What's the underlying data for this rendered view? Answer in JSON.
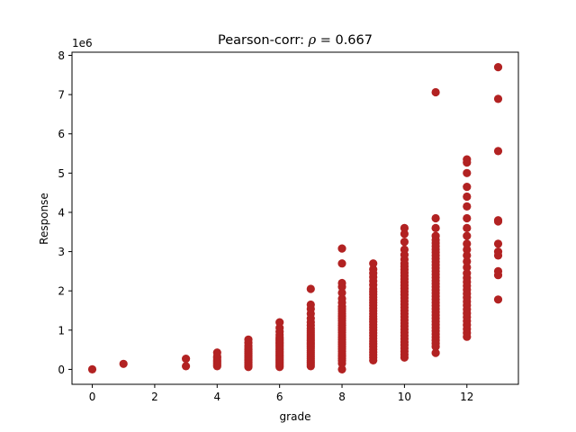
{
  "chart_data": {
    "type": "scatter",
    "title_prefix": "Pearson-corr: ",
    "title_rho": "ρ",
    "title_suffix": " = 0.667",
    "xlabel": "grade",
    "ylabel": "Response",
    "y_offset_label": "1e6",
    "xlim": [
      -0.65,
      13.65
    ],
    "ylim": [
      -380000,
      8080000
    ],
    "x_ticks": [
      0,
      2,
      4,
      6,
      8,
      10,
      12
    ],
    "y_ticks": [
      0,
      1000000,
      2000000,
      3000000,
      4000000,
      5000000,
      6000000,
      7000000,
      8000000
    ],
    "y_tick_labels": [
      "0",
      "1",
      "2",
      "3",
      "4",
      "5",
      "6",
      "7",
      "8"
    ],
    "grid": false,
    "marker_color": "#b22222",
    "points": [
      {
        "x": 0,
        "y": 0
      },
      {
        "x": 1,
        "y": 140000
      },
      {
        "x": 3,
        "y": 80000
      },
      {
        "x": 3,
        "y": 270000
      },
      {
        "x": 4,
        "y": 80000
      },
      {
        "x": 4,
        "y": 120000
      },
      {
        "x": 4,
        "y": 160000
      },
      {
        "x": 4,
        "y": 200000
      },
      {
        "x": 4,
        "y": 240000
      },
      {
        "x": 4,
        "y": 290000
      },
      {
        "x": 4,
        "y": 330000
      },
      {
        "x": 4,
        "y": 430000
      },
      {
        "x": 5,
        "y": 60000
      },
      {
        "x": 5,
        "y": 100000
      },
      {
        "x": 5,
        "y": 140000
      },
      {
        "x": 5,
        "y": 180000
      },
      {
        "x": 5,
        "y": 220000
      },
      {
        "x": 5,
        "y": 260000
      },
      {
        "x": 5,
        "y": 300000
      },
      {
        "x": 5,
        "y": 340000
      },
      {
        "x": 5,
        "y": 380000
      },
      {
        "x": 5,
        "y": 420000
      },
      {
        "x": 5,
        "y": 460000
      },
      {
        "x": 5,
        "y": 500000
      },
      {
        "x": 5,
        "y": 540000
      },
      {
        "x": 5,
        "y": 600000
      },
      {
        "x": 5,
        "y": 680000
      },
      {
        "x": 5,
        "y": 760000
      },
      {
        "x": 6,
        "y": 60000
      },
      {
        "x": 6,
        "y": 100000
      },
      {
        "x": 6,
        "y": 140000
      },
      {
        "x": 6,
        "y": 180000
      },
      {
        "x": 6,
        "y": 220000
      },
      {
        "x": 6,
        "y": 260000
      },
      {
        "x": 6,
        "y": 300000
      },
      {
        "x": 6,
        "y": 340000
      },
      {
        "x": 6,
        "y": 380000
      },
      {
        "x": 6,
        "y": 420000
      },
      {
        "x": 6,
        "y": 460000
      },
      {
        "x": 6,
        "y": 500000
      },
      {
        "x": 6,
        "y": 540000
      },
      {
        "x": 6,
        "y": 580000
      },
      {
        "x": 6,
        "y": 620000
      },
      {
        "x": 6,
        "y": 660000
      },
      {
        "x": 6,
        "y": 700000
      },
      {
        "x": 6,
        "y": 740000
      },
      {
        "x": 6,
        "y": 780000
      },
      {
        "x": 6,
        "y": 820000
      },
      {
        "x": 6,
        "y": 880000
      },
      {
        "x": 6,
        "y": 960000
      },
      {
        "x": 6,
        "y": 1060000
      },
      {
        "x": 6,
        "y": 1200000
      },
      {
        "x": 7,
        "y": 80000
      },
      {
        "x": 7,
        "y": 130000
      },
      {
        "x": 7,
        "y": 180000
      },
      {
        "x": 7,
        "y": 230000
      },
      {
        "x": 7,
        "y": 280000
      },
      {
        "x": 7,
        "y": 330000
      },
      {
        "x": 7,
        "y": 380000
      },
      {
        "x": 7,
        "y": 430000
      },
      {
        "x": 7,
        "y": 480000
      },
      {
        "x": 7,
        "y": 530000
      },
      {
        "x": 7,
        "y": 580000
      },
      {
        "x": 7,
        "y": 630000
      },
      {
        "x": 7,
        "y": 680000
      },
      {
        "x": 7,
        "y": 730000
      },
      {
        "x": 7,
        "y": 780000
      },
      {
        "x": 7,
        "y": 830000
      },
      {
        "x": 7,
        "y": 880000
      },
      {
        "x": 7,
        "y": 930000
      },
      {
        "x": 7,
        "y": 980000
      },
      {
        "x": 7,
        "y": 1040000
      },
      {
        "x": 7,
        "y": 1120000
      },
      {
        "x": 7,
        "y": 1200000
      },
      {
        "x": 7,
        "y": 1300000
      },
      {
        "x": 7,
        "y": 1420000
      },
      {
        "x": 7,
        "y": 1540000
      },
      {
        "x": 7,
        "y": 1650000
      },
      {
        "x": 7,
        "y": 2050000
      },
      {
        "x": 8,
        "y": 0
      },
      {
        "x": 8,
        "y": 150000
      },
      {
        "x": 8,
        "y": 220000
      },
      {
        "x": 8,
        "y": 280000
      },
      {
        "x": 8,
        "y": 340000
      },
      {
        "x": 8,
        "y": 400000
      },
      {
        "x": 8,
        "y": 460000
      },
      {
        "x": 8,
        "y": 520000
      },
      {
        "x": 8,
        "y": 580000
      },
      {
        "x": 8,
        "y": 640000
      },
      {
        "x": 8,
        "y": 700000
      },
      {
        "x": 8,
        "y": 760000
      },
      {
        "x": 8,
        "y": 820000
      },
      {
        "x": 8,
        "y": 880000
      },
      {
        "x": 8,
        "y": 940000
      },
      {
        "x": 8,
        "y": 1000000
      },
      {
        "x": 8,
        "y": 1060000
      },
      {
        "x": 8,
        "y": 1120000
      },
      {
        "x": 8,
        "y": 1180000
      },
      {
        "x": 8,
        "y": 1240000
      },
      {
        "x": 8,
        "y": 1300000
      },
      {
        "x": 8,
        "y": 1360000
      },
      {
        "x": 8,
        "y": 1420000
      },
      {
        "x": 8,
        "y": 1480000
      },
      {
        "x": 8,
        "y": 1540000
      },
      {
        "x": 8,
        "y": 1600000
      },
      {
        "x": 8,
        "y": 1700000
      },
      {
        "x": 8,
        "y": 1800000
      },
      {
        "x": 8,
        "y": 1950000
      },
      {
        "x": 8,
        "y": 2100000
      },
      {
        "x": 8,
        "y": 2200000
      },
      {
        "x": 8,
        "y": 2700000
      },
      {
        "x": 8,
        "y": 3080000
      },
      {
        "x": 9,
        "y": 230000
      },
      {
        "x": 9,
        "y": 300000
      },
      {
        "x": 9,
        "y": 370000
      },
      {
        "x": 9,
        "y": 440000
      },
      {
        "x": 9,
        "y": 510000
      },
      {
        "x": 9,
        "y": 580000
      },
      {
        "x": 9,
        "y": 650000
      },
      {
        "x": 9,
        "y": 720000
      },
      {
        "x": 9,
        "y": 790000
      },
      {
        "x": 9,
        "y": 860000
      },
      {
        "x": 9,
        "y": 930000
      },
      {
        "x": 9,
        "y": 1000000
      },
      {
        "x": 9,
        "y": 1070000
      },
      {
        "x": 9,
        "y": 1140000
      },
      {
        "x": 9,
        "y": 1210000
      },
      {
        "x": 9,
        "y": 1280000
      },
      {
        "x": 9,
        "y": 1350000
      },
      {
        "x": 9,
        "y": 1420000
      },
      {
        "x": 9,
        "y": 1490000
      },
      {
        "x": 9,
        "y": 1560000
      },
      {
        "x": 9,
        "y": 1630000
      },
      {
        "x": 9,
        "y": 1700000
      },
      {
        "x": 9,
        "y": 1770000
      },
      {
        "x": 9,
        "y": 1840000
      },
      {
        "x": 9,
        "y": 1910000
      },
      {
        "x": 9,
        "y": 1980000
      },
      {
        "x": 9,
        "y": 2050000
      },
      {
        "x": 9,
        "y": 2150000
      },
      {
        "x": 9,
        "y": 2250000
      },
      {
        "x": 9,
        "y": 2350000
      },
      {
        "x": 9,
        "y": 2450000
      },
      {
        "x": 9,
        "y": 2550000
      },
      {
        "x": 9,
        "y": 2700000
      },
      {
        "x": 10,
        "y": 300000
      },
      {
        "x": 10,
        "y": 380000
      },
      {
        "x": 10,
        "y": 460000
      },
      {
        "x": 10,
        "y": 540000
      },
      {
        "x": 10,
        "y": 620000
      },
      {
        "x": 10,
        "y": 700000
      },
      {
        "x": 10,
        "y": 780000
      },
      {
        "x": 10,
        "y": 860000
      },
      {
        "x": 10,
        "y": 940000
      },
      {
        "x": 10,
        "y": 1020000
      },
      {
        "x": 10,
        "y": 1100000
      },
      {
        "x": 10,
        "y": 1180000
      },
      {
        "x": 10,
        "y": 1260000
      },
      {
        "x": 10,
        "y": 1340000
      },
      {
        "x": 10,
        "y": 1420000
      },
      {
        "x": 10,
        "y": 1500000
      },
      {
        "x": 10,
        "y": 1580000
      },
      {
        "x": 10,
        "y": 1660000
      },
      {
        "x": 10,
        "y": 1740000
      },
      {
        "x": 10,
        "y": 1820000
      },
      {
        "x": 10,
        "y": 1900000
      },
      {
        "x": 10,
        "y": 1980000
      },
      {
        "x": 10,
        "y": 2060000
      },
      {
        "x": 10,
        "y": 2140000
      },
      {
        "x": 10,
        "y": 2220000
      },
      {
        "x": 10,
        "y": 2300000
      },
      {
        "x": 10,
        "y": 2380000
      },
      {
        "x": 10,
        "y": 2460000
      },
      {
        "x": 10,
        "y": 2540000
      },
      {
        "x": 10,
        "y": 2620000
      },
      {
        "x": 10,
        "y": 2700000
      },
      {
        "x": 10,
        "y": 2800000
      },
      {
        "x": 10,
        "y": 2920000
      },
      {
        "x": 10,
        "y": 3050000
      },
      {
        "x": 10,
        "y": 3250000
      },
      {
        "x": 10,
        "y": 3450000
      },
      {
        "x": 10,
        "y": 3600000
      },
      {
        "x": 11,
        "y": 420000
      },
      {
        "x": 11,
        "y": 580000
      },
      {
        "x": 11,
        "y": 660000
      },
      {
        "x": 11,
        "y": 740000
      },
      {
        "x": 11,
        "y": 820000
      },
      {
        "x": 11,
        "y": 900000
      },
      {
        "x": 11,
        "y": 980000
      },
      {
        "x": 11,
        "y": 1060000
      },
      {
        "x": 11,
        "y": 1140000
      },
      {
        "x": 11,
        "y": 1220000
      },
      {
        "x": 11,
        "y": 1300000
      },
      {
        "x": 11,
        "y": 1380000
      },
      {
        "x": 11,
        "y": 1460000
      },
      {
        "x": 11,
        "y": 1540000
      },
      {
        "x": 11,
        "y": 1620000
      },
      {
        "x": 11,
        "y": 1700000
      },
      {
        "x": 11,
        "y": 1780000
      },
      {
        "x": 11,
        "y": 1860000
      },
      {
        "x": 11,
        "y": 1940000
      },
      {
        "x": 11,
        "y": 2020000
      },
      {
        "x": 11,
        "y": 2100000
      },
      {
        "x": 11,
        "y": 2180000
      },
      {
        "x": 11,
        "y": 2260000
      },
      {
        "x": 11,
        "y": 2340000
      },
      {
        "x": 11,
        "y": 2420000
      },
      {
        "x": 11,
        "y": 2500000
      },
      {
        "x": 11,
        "y": 2580000
      },
      {
        "x": 11,
        "y": 2660000
      },
      {
        "x": 11,
        "y": 2740000
      },
      {
        "x": 11,
        "y": 2820000
      },
      {
        "x": 11,
        "y": 2900000
      },
      {
        "x": 11,
        "y": 2980000
      },
      {
        "x": 11,
        "y": 3060000
      },
      {
        "x": 11,
        "y": 3140000
      },
      {
        "x": 11,
        "y": 3220000
      },
      {
        "x": 11,
        "y": 3300000
      },
      {
        "x": 11,
        "y": 3400000
      },
      {
        "x": 11,
        "y": 3600000
      },
      {
        "x": 11,
        "y": 3850000
      },
      {
        "x": 11,
        "y": 7060000
      },
      {
        "x": 12,
        "y": 830000
      },
      {
        "x": 12,
        "y": 930000
      },
      {
        "x": 12,
        "y": 1030000
      },
      {
        "x": 12,
        "y": 1130000
      },
      {
        "x": 12,
        "y": 1230000
      },
      {
        "x": 12,
        "y": 1330000
      },
      {
        "x": 12,
        "y": 1430000
      },
      {
        "x": 12,
        "y": 1530000
      },
      {
        "x": 12,
        "y": 1630000
      },
      {
        "x": 12,
        "y": 1730000
      },
      {
        "x": 12,
        "y": 1830000
      },
      {
        "x": 12,
        "y": 1930000
      },
      {
        "x": 12,
        "y": 2030000
      },
      {
        "x": 12,
        "y": 2130000
      },
      {
        "x": 12,
        "y": 2230000
      },
      {
        "x": 12,
        "y": 2330000
      },
      {
        "x": 12,
        "y": 2450000
      },
      {
        "x": 12,
        "y": 2600000
      },
      {
        "x": 12,
        "y": 2750000
      },
      {
        "x": 12,
        "y": 2900000
      },
      {
        "x": 12,
        "y": 3050000
      },
      {
        "x": 12,
        "y": 3200000
      },
      {
        "x": 12,
        "y": 3400000
      },
      {
        "x": 12,
        "y": 3600000
      },
      {
        "x": 12,
        "y": 3850000
      },
      {
        "x": 12,
        "y": 4150000
      },
      {
        "x": 12,
        "y": 4400000
      },
      {
        "x": 12,
        "y": 4650000
      },
      {
        "x": 12,
        "y": 5000000
      },
      {
        "x": 12,
        "y": 5270000
      },
      {
        "x": 12,
        "y": 5350000
      },
      {
        "x": 13,
        "y": 1780000
      },
      {
        "x": 13,
        "y": 2400000
      },
      {
        "x": 13,
        "y": 2500000
      },
      {
        "x": 13,
        "y": 2900000
      },
      {
        "x": 13,
        "y": 3000000
      },
      {
        "x": 13,
        "y": 3200000
      },
      {
        "x": 13,
        "y": 3770000
      },
      {
        "x": 13,
        "y": 3800000
      },
      {
        "x": 13,
        "y": 5560000
      },
      {
        "x": 13,
        "y": 6890000
      },
      {
        "x": 13,
        "y": 7700000
      }
    ]
  }
}
